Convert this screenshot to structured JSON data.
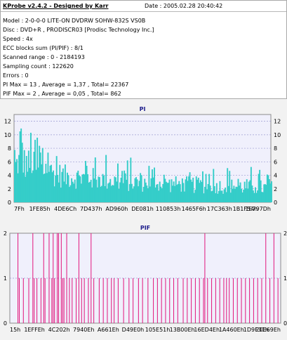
{
  "header": {
    "title": "KProbe v2.4.2 - Designed by Karr",
    "date": "Date : 2005.02.28 20:40:42"
  },
  "info": [
    "Model : 2-0-0-0 LITE-ON DVDRW SOHW-832S  VS0B",
    "Disc : DVD+R , PRODISCR03 [Prodisc Technology Inc.]",
    "Speed : 4x",
    "ECC blocks sum (PI/PIF) : 8/1",
    "Scanned range : 0 - 2184193",
    "Sampling count : 122620",
    "Errors : 0",
    "PI Max = 13 , Average = 1,37 , Total= 22367",
    "PIF Max = 2 , Average = 0,05 , Total= 862"
  ],
  "colors": {
    "pi": "#35cdc9",
    "pif": "#e2157c",
    "plot_bg": "#f0f0fc",
    "grid": "#9b9bd0"
  },
  "chart_data": [
    {
      "type": "area",
      "title": "PI",
      "ylim": [
        0,
        13
      ],
      "yticks": [
        0,
        2,
        4,
        6,
        8,
        10,
        12
      ],
      "grid": true,
      "xlabels": [
        "7Fh",
        "1FE85h",
        "4DE6Ch",
        "7D437h",
        "AD960h",
        "DE081h",
        "110853h",
        "1465F6h",
        "17C363h",
        "1B1F54h",
        "1E797Dh"
      ],
      "profile": {
        "positions": [
          0,
          0.02,
          0.06,
          0.12,
          0.2,
          0.3,
          0.4,
          0.5,
          0.6,
          0.7,
          0.8,
          0.9,
          1.0
        ],
        "base": [
          3.5,
          3.5,
          3.0,
          2.5,
          2.0,
          1.8,
          1.6,
          1.5,
          1.4,
          1.3,
          1.2,
          1.1,
          1.0
        ],
        "peak": [
          10,
          13,
          12,
          10,
          8.5,
          8,
          7,
          6.5,
          6,
          6,
          5.5,
          5.5,
          5
        ]
      }
    },
    {
      "type": "bar",
      "title": "PIF",
      "ylim": [
        0,
        2
      ],
      "yticks": [
        0,
        1,
        2
      ],
      "grid": true,
      "xlabels": [
        "15h",
        "1EFFEh",
        "4C202h",
        "7940Eh",
        "A661Eh",
        "D49E0h",
        "105E51h",
        "13B00Eh",
        "16ED4Eh",
        "1A460Eh",
        "1D9F31h",
        "20E69Eh"
      ],
      "spikes": [
        {
          "x": 0.03,
          "v": 2
        },
        {
          "x": 0.035,
          "v": 1
        },
        {
          "x": 0.05,
          "v": 1
        },
        {
          "x": 0.07,
          "v": 1
        },
        {
          "x": 0.085,
          "v": 2
        },
        {
          "x": 0.09,
          "v": 1
        },
        {
          "x": 0.1,
          "v": 1
        },
        {
          "x": 0.115,
          "v": 1
        },
        {
          "x": 0.125,
          "v": 2
        },
        {
          "x": 0.13,
          "v": 1
        },
        {
          "x": 0.145,
          "v": 2
        },
        {
          "x": 0.155,
          "v": 1
        },
        {
          "x": 0.16,
          "v": 2
        },
        {
          "x": 0.165,
          "v": 1
        },
        {
          "x": 0.175,
          "v": 2
        },
        {
          "x": 0.18,
          "v": 2
        },
        {
          "x": 0.19,
          "v": 2
        },
        {
          "x": 0.195,
          "v": 1
        },
        {
          "x": 0.2,
          "v": 1
        },
        {
          "x": 0.21,
          "v": 2
        },
        {
          "x": 0.22,
          "v": 1
        },
        {
          "x": 0.23,
          "v": 1
        },
        {
          "x": 0.245,
          "v": 1
        },
        {
          "x": 0.255,
          "v": 2
        },
        {
          "x": 0.265,
          "v": 1
        },
        {
          "x": 0.275,
          "v": 1
        },
        {
          "x": 0.29,
          "v": 1
        },
        {
          "x": 0.3,
          "v": 2
        },
        {
          "x": 0.31,
          "v": 1
        },
        {
          "x": 0.33,
          "v": 1
        },
        {
          "x": 0.345,
          "v": 1
        },
        {
          "x": 0.36,
          "v": 1
        },
        {
          "x": 0.375,
          "v": 1
        },
        {
          "x": 0.385,
          "v": 1
        },
        {
          "x": 0.4,
          "v": 1
        },
        {
          "x": 0.42,
          "v": 1
        },
        {
          "x": 0.44,
          "v": 1
        },
        {
          "x": 0.455,
          "v": 1
        },
        {
          "x": 0.475,
          "v": 1
        },
        {
          "x": 0.49,
          "v": 1
        },
        {
          "x": 0.51,
          "v": 1
        },
        {
          "x": 0.53,
          "v": 1
        },
        {
          "x": 0.545,
          "v": 1
        },
        {
          "x": 0.56,
          "v": 1
        },
        {
          "x": 0.575,
          "v": 1
        },
        {
          "x": 0.59,
          "v": 1
        },
        {
          "x": 0.605,
          "v": 1
        },
        {
          "x": 0.62,
          "v": 1
        },
        {
          "x": 0.64,
          "v": 1
        },
        {
          "x": 0.655,
          "v": 1
        },
        {
          "x": 0.67,
          "v": 1
        },
        {
          "x": 0.685,
          "v": 1
        },
        {
          "x": 0.7,
          "v": 1
        },
        {
          "x": 0.715,
          "v": 1
        },
        {
          "x": 0.72,
          "v": 2
        },
        {
          "x": 0.73,
          "v": 1
        },
        {
          "x": 0.745,
          "v": 1
        },
        {
          "x": 0.76,
          "v": 1
        },
        {
          "x": 0.775,
          "v": 1
        },
        {
          "x": 0.79,
          "v": 1
        },
        {
          "x": 0.8,
          "v": 1
        },
        {
          "x": 0.81,
          "v": 1
        },
        {
          "x": 0.825,
          "v": 1
        },
        {
          "x": 0.84,
          "v": 1
        },
        {
          "x": 0.855,
          "v": 1
        },
        {
          "x": 0.87,
          "v": 1
        },
        {
          "x": 0.885,
          "v": 1
        },
        {
          "x": 0.9,
          "v": 1
        },
        {
          "x": 0.915,
          "v": 1
        },
        {
          "x": 0.93,
          "v": 1
        },
        {
          "x": 0.945,
          "v": 2
        },
        {
          "x": 0.96,
          "v": 1
        },
        {
          "x": 0.975,
          "v": 2
        },
        {
          "x": 0.99,
          "v": 1
        }
      ]
    }
  ]
}
